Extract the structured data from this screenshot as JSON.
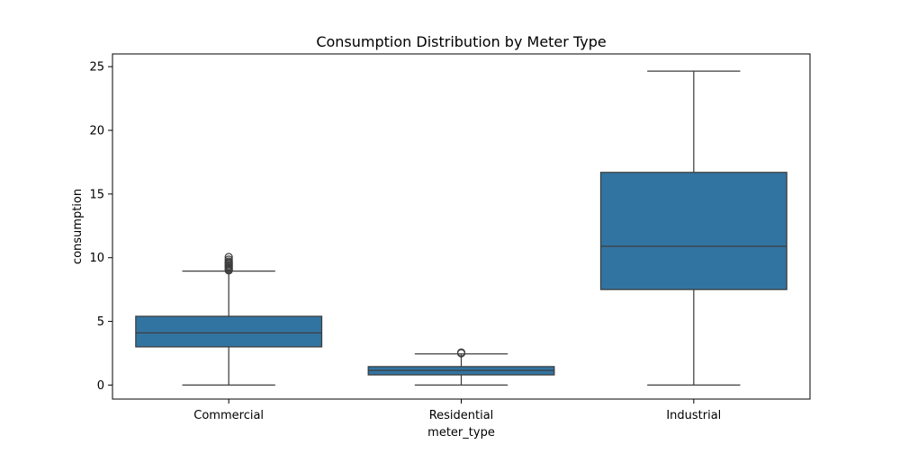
{
  "chart_data": {
    "type": "box",
    "title": "Consumption Distribution by Meter Type",
    "xlabel": "meter_type",
    "ylabel": "consumption",
    "ylim": [
      -1.1,
      26
    ],
    "yticks": [
      0,
      5,
      10,
      15,
      20,
      25
    ],
    "grid": false,
    "legend": "none",
    "categories": [
      "Commercial",
      "Residential",
      "Industrial"
    ],
    "boxes": [
      {
        "category": "Commercial",
        "whisker_low": 0,
        "q1": 3.0,
        "median": 4.1,
        "q3": 5.4,
        "whisker_high": 8.95,
        "outliers": [
          9.0,
          9.1,
          9.2,
          9.3,
          9.4,
          9.5,
          9.6,
          9.7,
          9.85,
          10.05
        ]
      },
      {
        "category": "Residential",
        "whisker_low": 0,
        "q1": 0.8,
        "median": 1.15,
        "q3": 1.45,
        "whisker_high": 2.45,
        "outliers": [
          2.5,
          2.55
        ]
      },
      {
        "category": "Industrial",
        "whisker_low": 0,
        "q1": 7.5,
        "median": 10.9,
        "q3": 16.7,
        "whisker_high": 24.65,
        "outliers": []
      }
    ],
    "colors": {
      "box_fill": "#3274a1",
      "line": "#3d3d3d",
      "axis": "#000000"
    }
  }
}
